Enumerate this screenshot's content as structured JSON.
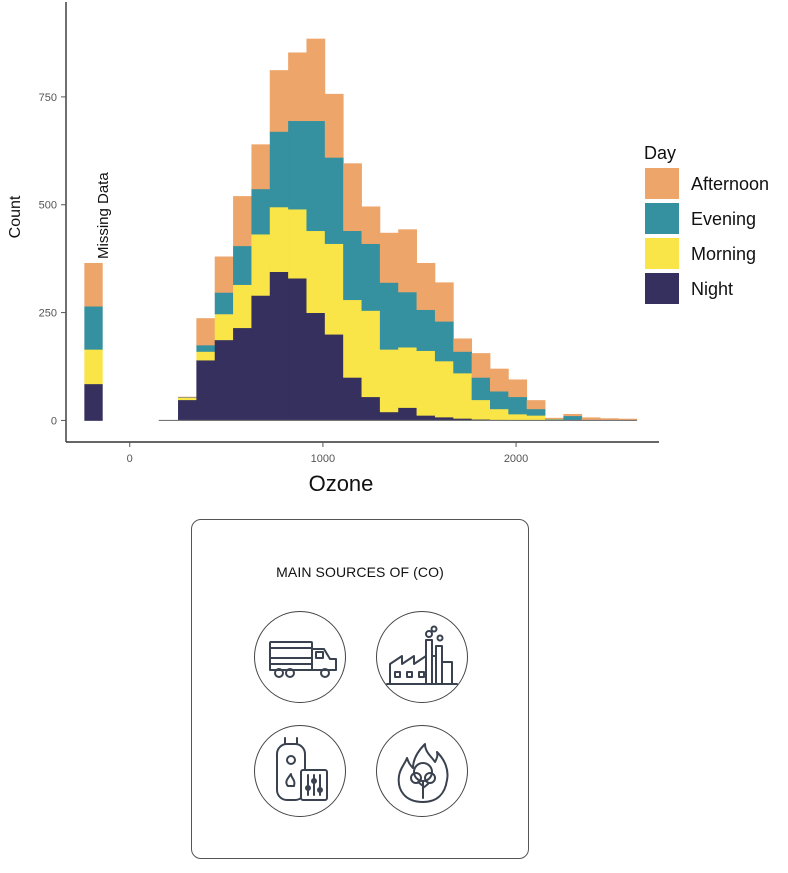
{
  "chart_data": {
    "type": "histogram",
    "xlabel": "Ozone",
    "ylabel": "Count",
    "xlim": [
      -330,
      2740
    ],
    "ylim": [
      -50,
      970
    ],
    "xticks": [
      0,
      1000,
      2000
    ],
    "yticks": [
      0,
      250,
      500,
      750
    ],
    "grid": false,
    "legend": {
      "title": "Day",
      "placement": "right"
    },
    "series_order": [
      "Night",
      "Morning",
      "Evening",
      "Afternoon"
    ],
    "colors": {
      "Night": "#35305d",
      "Morning": "#f9e548",
      "Evening": "#35919f",
      "Afternoon": "#eda56a"
    },
    "missing_bar": {
      "label": "Missing Data",
      "x_range": [
        -235,
        -140
      ],
      "values": {
        "Night": 85,
        "Morning": 80,
        "Evening": 100,
        "Afternoon": 100
      }
    },
    "bin_edges": [
      150,
      250,
      345,
      440,
      535,
      630,
      725,
      820,
      915,
      1010,
      1105,
      1200,
      1295,
      1390,
      1485,
      1580,
      1675,
      1770,
      1865,
      1960,
      2055,
      2150,
      2245,
      2340,
      2435,
      2530,
      2625
    ],
    "counts": {
      "Night": [
        0,
        48,
        140,
        187,
        215,
        290,
        345,
        330,
        250,
        200,
        100,
        55,
        20,
        30,
        12,
        8,
        5,
        3,
        2,
        1,
        0,
        0,
        0,
        0,
        0,
        0
      ],
      "Morning": [
        0,
        5,
        20,
        60,
        100,
        142,
        150,
        160,
        190,
        210,
        180,
        200,
        145,
        140,
        150,
        130,
        105,
        45,
        25,
        14,
        12,
        3,
        1,
        1,
        0,
        0
      ],
      "Evening": [
        0,
        1,
        15,
        50,
        90,
        105,
        175,
        205,
        255,
        200,
        160,
        155,
        155,
        128,
        95,
        92,
        50,
        52,
        41,
        40,
        15,
        1,
        10,
        1,
        0,
        0
      ],
      "Afternoon": [
        0,
        1,
        62,
        83,
        115,
        103,
        142,
        158,
        190,
        147,
        156,
        86,
        115,
        145,
        108,
        90,
        30,
        56,
        52,
        40,
        20,
        2,
        4,
        5,
        5,
        4
      ]
    }
  },
  "sources_panel": {
    "title": "MAIN SOURCES OF (CO)",
    "icons": [
      "truck-icon",
      "factory-icon",
      "water-heater-icon",
      "wildfire-icon"
    ]
  }
}
